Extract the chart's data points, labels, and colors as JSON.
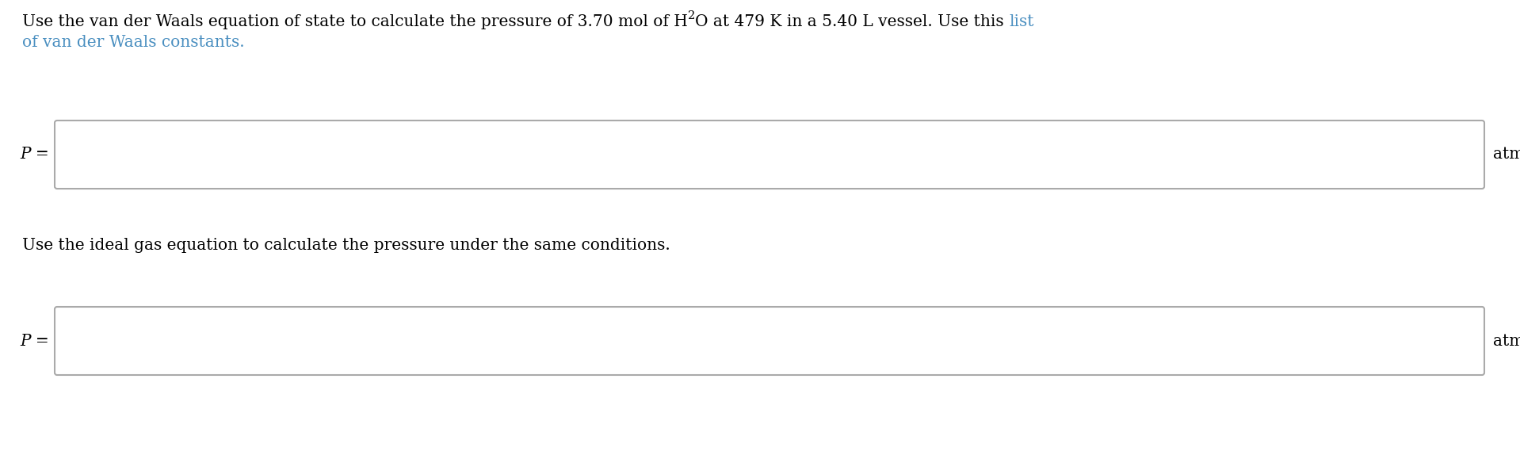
{
  "background_color": "#ffffff",
  "text_color": "#000000",
  "link_color": "#4a8fc0",
  "box_edge_color": "#aaaaaa",
  "font_size_title": 14.5,
  "font_size_label": 14.5,
  "font_size_unit": 14.5,
  "font_size_mid": 14.5,
  "line1_part1": "Use the van der Waals equation of state to calculate the pressure of 3.70 mol of H",
  "line1_sub": "2",
  "line1_part2": "O at 479 K in a 5.40 L vessel. Use this ",
  "line1_link": "list",
  "line2_link": "of van der Waals constants.",
  "middle_text": "Use the ideal gas equation to calculate the pressure under the same conditions.",
  "label": "P =",
  "unit": "atm",
  "fig_width": 19.18,
  "fig_height": 5.84,
  "dpi": 100
}
